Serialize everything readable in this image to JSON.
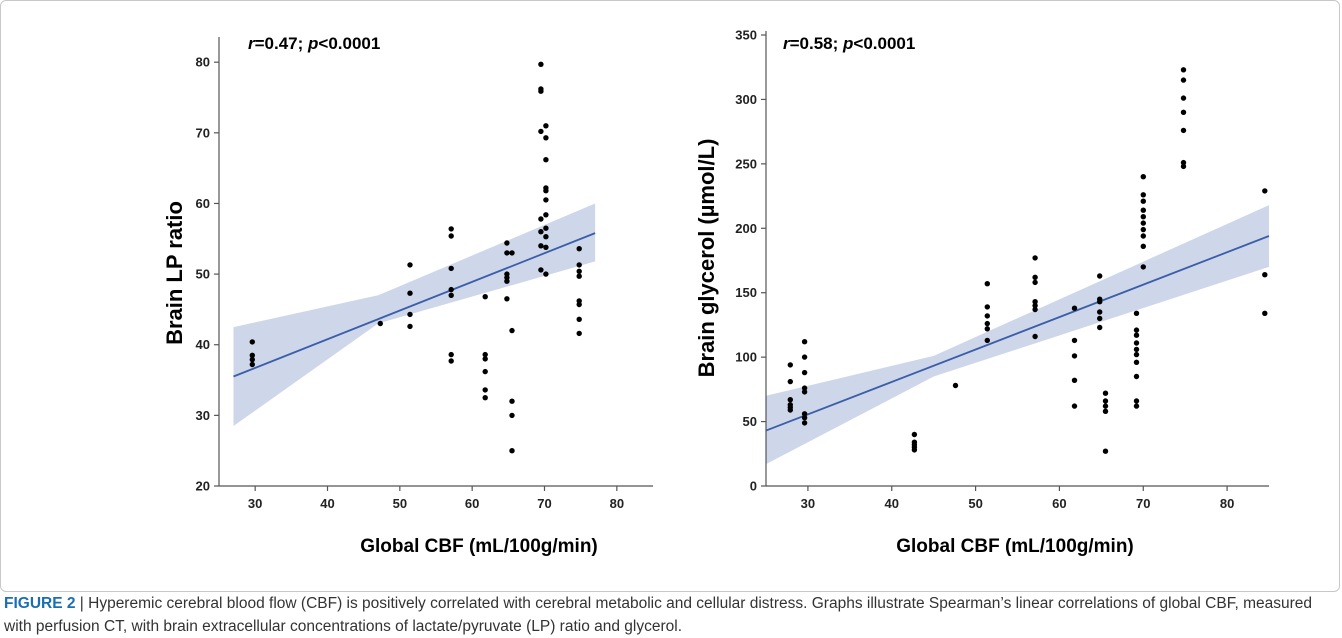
{
  "caption": {
    "label": "FIGURE 2",
    "separator": " | ",
    "text": "Hyperemic cerebral blood flow (CBF) is positively correlated with cerebral metabolic and cellular distress. Graphs illustrate Spearman’s linear correlations of global CBF, measured with perfusion CT, with brain extracellular concentrations of lactate/pyruvate (LP) ratio and glycerol."
  },
  "colors": {
    "line": "#3a5ea8",
    "band": "#c5cfe6",
    "point": "#000000",
    "caption_label": "#1a6fb3"
  },
  "chart_data": [
    {
      "type": "scatter",
      "annotation": {
        "r_sym": "r",
        "r_val": "=0.47; ",
        "p_sym": "p",
        "p_val": "<0.0001"
      },
      "xlabel": "Global CBF (mL/100g/min)",
      "ylabel": "Brain LP ratio",
      "xlim": [
        25,
        85
      ],
      "ylim": [
        20,
        83
      ],
      "xticks": [
        30,
        40,
        50,
        60,
        70,
        80
      ],
      "yticks": [
        20,
        30,
        40,
        50,
        60,
        70,
        80
      ],
      "fit": {
        "x": [
          27,
          77
        ],
        "y": [
          35.5,
          55.8
        ]
      },
      "ci_band": {
        "x": [
          27,
          47,
          77
        ],
        "lower": [
          28.5,
          43.0,
          51.8
        ],
        "upper": [
          42.5,
          47.0,
          60.0
        ]
      },
      "points": [
        [
          29.6,
          40.4
        ],
        [
          29.6,
          38.5
        ],
        [
          29.6,
          37.9
        ],
        [
          29.6,
          37.2
        ],
        [
          47.3,
          43.0
        ],
        [
          51.4,
          51.3
        ],
        [
          51.4,
          47.3
        ],
        [
          51.4,
          44.3
        ],
        [
          51.4,
          42.6
        ],
        [
          57.1,
          56.4
        ],
        [
          57.1,
          55.4
        ],
        [
          57.1,
          50.8
        ],
        [
          57.1,
          47.8
        ],
        [
          57.1,
          47.0
        ],
        [
          57.1,
          38.6
        ],
        [
          57.1,
          37.7
        ],
        [
          61.8,
          46.8
        ],
        [
          61.8,
          38.6
        ],
        [
          61.8,
          38.0
        ],
        [
          61.8,
          36.2
        ],
        [
          61.8,
          33.6
        ],
        [
          61.8,
          32.5
        ],
        [
          64.8,
          54.4
        ],
        [
          64.8,
          53.0
        ],
        [
          64.8,
          50.0
        ],
        [
          64.8,
          49.5
        ],
        [
          64.8,
          49.0
        ],
        [
          64.8,
          46.5
        ],
        [
          65.5,
          53.0
        ],
        [
          65.5,
          42.0
        ],
        [
          65.5,
          32.0
        ],
        [
          65.5,
          30.0
        ],
        [
          65.5,
          25.0
        ],
        [
          69.5,
          79.7
        ],
        [
          69.5,
          76.2
        ],
        [
          69.5,
          75.9
        ],
        [
          69.5,
          70.2
        ],
        [
          69.5,
          57.8
        ],
        [
          69.5,
          56.0
        ],
        [
          69.5,
          54.0
        ],
        [
          69.5,
          50.6
        ],
        [
          70.2,
          71.0
        ],
        [
          70.2,
          69.3
        ],
        [
          70.2,
          66.2
        ],
        [
          70.2,
          62.2
        ],
        [
          70.2,
          61.8
        ],
        [
          70.2,
          60.5
        ],
        [
          70.2,
          58.4
        ],
        [
          70.2,
          56.5
        ],
        [
          70.2,
          55.3
        ],
        [
          70.2,
          53.8
        ],
        [
          70.2,
          50.0
        ],
        [
          74.8,
          53.6
        ],
        [
          74.8,
          51.3
        ],
        [
          74.8,
          50.4
        ],
        [
          74.8,
          49.7
        ],
        [
          74.8,
          46.2
        ],
        [
          74.8,
          45.7
        ],
        [
          74.8,
          43.6
        ],
        [
          74.8,
          41.6
        ]
      ]
    },
    {
      "type": "scatter",
      "annotation": {
        "r_sym": "r",
        "r_val": "=0.58; ",
        "p_sym": "p",
        "p_val": "<0.0001"
      },
      "xlabel": "Global CBF (mL/100g/min)",
      "ylabel": "Brain glycerol (µmol/L)",
      "xlim": [
        25,
        85
      ],
      "ylim": [
        0,
        350
      ],
      "xticks": [
        30,
        40,
        50,
        60,
        70,
        80
      ],
      "yticks": [
        0,
        50,
        100,
        150,
        200,
        250,
        300,
        350
      ],
      "fit": {
        "x": [
          25,
          85
        ],
        "y": [
          43,
          194
        ]
      },
      "ci_band": {
        "x": [
          25,
          45,
          85
        ],
        "lower": [
          17,
          85,
          170
        ],
        "upper": [
          70,
          101,
          218
        ]
      },
      "points": [
        [
          27.9,
          94
        ],
        [
          27.9,
          81
        ],
        [
          27.9,
          67
        ],
        [
          27.9,
          63
        ],
        [
          27.9,
          61
        ],
        [
          27.9,
          59
        ],
        [
          29.6,
          112
        ],
        [
          29.6,
          100
        ],
        [
          29.6,
          88
        ],
        [
          29.6,
          76
        ],
        [
          29.6,
          73
        ],
        [
          29.6,
          56
        ],
        [
          29.6,
          53
        ],
        [
          29.6,
          49
        ],
        [
          42.7,
          40
        ],
        [
          42.7,
          34
        ],
        [
          42.7,
          32
        ],
        [
          42.7,
          30
        ],
        [
          42.7,
          28
        ],
        [
          47.6,
          78
        ],
        [
          51.4,
          157
        ],
        [
          51.4,
          139
        ],
        [
          51.4,
          132
        ],
        [
          51.4,
          126
        ],
        [
          51.4,
          122
        ],
        [
          51.4,
          113
        ],
        [
          57.1,
          177
        ],
        [
          57.1,
          162
        ],
        [
          57.1,
          158
        ],
        [
          57.1,
          143
        ],
        [
          57.1,
          140
        ],
        [
          57.1,
          137
        ],
        [
          57.1,
          116
        ],
        [
          61.8,
          138
        ],
        [
          61.8,
          113
        ],
        [
          61.8,
          101
        ],
        [
          61.8,
          82
        ],
        [
          61.8,
          62
        ],
        [
          64.8,
          163
        ],
        [
          64.8,
          145
        ],
        [
          64.8,
          143
        ],
        [
          64.8,
          135
        ],
        [
          64.8,
          130
        ],
        [
          64.8,
          123
        ],
        [
          65.5,
          72
        ],
        [
          65.5,
          66
        ],
        [
          65.5,
          62
        ],
        [
          65.5,
          58
        ],
        [
          65.5,
          27
        ],
        [
          69.2,
          134
        ],
        [
          69.2,
          121
        ],
        [
          69.2,
          117
        ],
        [
          69.2,
          111
        ],
        [
          69.2,
          106
        ],
        [
          69.2,
          102
        ],
        [
          69.2,
          96
        ],
        [
          69.2,
          85
        ],
        [
          69.2,
          66
        ],
        [
          69.2,
          62
        ],
        [
          70.0,
          240
        ],
        [
          70.0,
          226
        ],
        [
          70.0,
          221
        ],
        [
          70.0,
          214
        ],
        [
          70.0,
          209
        ],
        [
          70.0,
          204
        ],
        [
          70.0,
          199
        ],
        [
          70.0,
          194
        ],
        [
          70.0,
          186
        ],
        [
          70.0,
          170
        ],
        [
          74.8,
          323
        ],
        [
          74.8,
          315
        ],
        [
          74.8,
          301
        ],
        [
          74.8,
          290
        ],
        [
          74.8,
          276
        ],
        [
          74.8,
          251
        ],
        [
          74.8,
          248
        ],
        [
          84.5,
          229
        ],
        [
          84.5,
          164
        ],
        [
          84.5,
          134
        ]
      ]
    }
  ]
}
